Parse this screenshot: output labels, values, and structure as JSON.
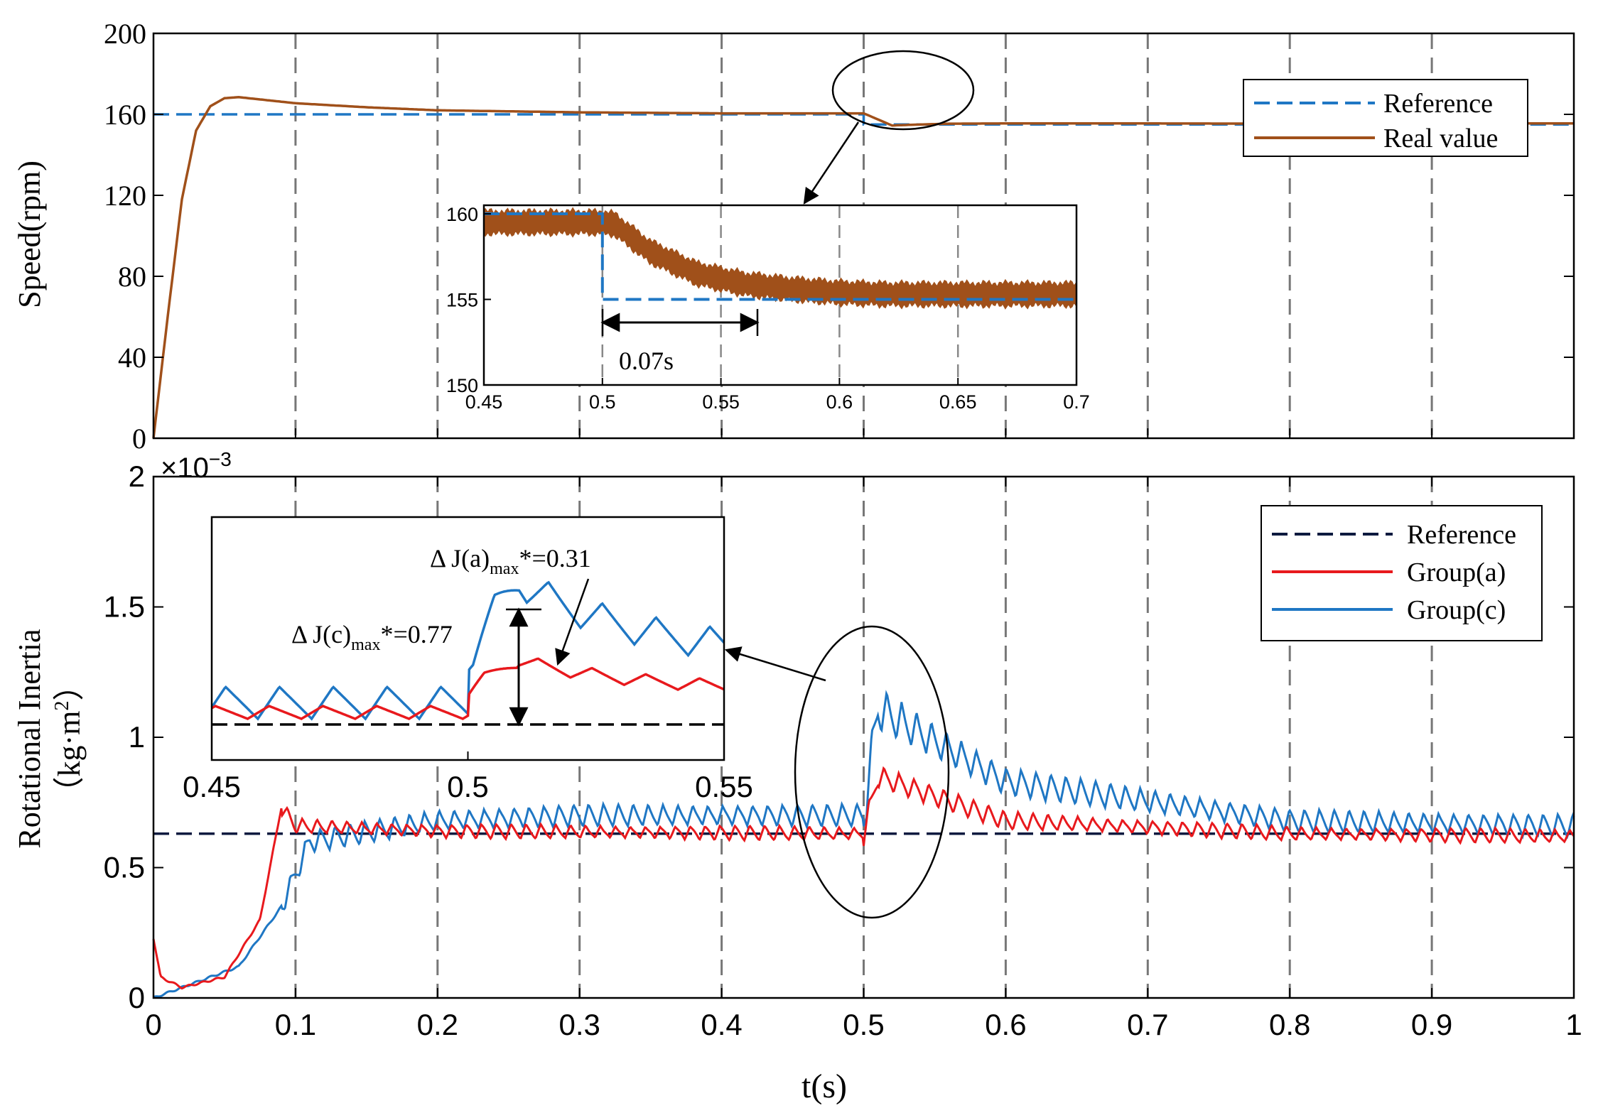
{
  "chart_data": [
    {
      "id": "speed",
      "type": "line",
      "title": "",
      "xlabel": "",
      "ylabel": "Speed(rpm)",
      "xlim": [
        0,
        1
      ],
      "ylim": [
        0,
        200
      ],
      "yticks": [
        0,
        40,
        80,
        120,
        160,
        200
      ],
      "ytick_labels": [
        "0",
        "40",
        "80",
        "120",
        "160",
        "200"
      ],
      "grid": "vertical dashed at every 0.1 s",
      "legend": {
        "placement": "top-right",
        "entries": [
          "Reference",
          "Real value"
        ]
      },
      "series": [
        {
          "name": "Reference",
          "style": "dashed",
          "color": "#1f77c4",
          "x": [
            0,
            0.5,
            0.5,
            1.0
          ],
          "y": [
            160,
            160,
            155,
            155
          ]
        },
        {
          "name": "Real value",
          "style": "solid",
          "color": "#a0501a",
          "x": [
            0,
            0.01,
            0.02,
            0.03,
            0.04,
            0.05,
            0.06,
            0.08,
            0.1,
            0.15,
            0.2,
            0.3,
            0.4,
            0.5,
            0.52,
            0.54,
            0.56,
            0.6,
            0.7,
            0.8,
            0.9,
            1.0
          ],
          "y": [
            0,
            60,
            118,
            152,
            164,
            168,
            168.5,
            167,
            165.5,
            163.5,
            162,
            161,
            160.5,
            160.5,
            154.5,
            155,
            155.4,
            155.5,
            155.5,
            155.4,
            155.5,
            155.5
          ]
        }
      ],
      "annotations": [
        {
          "text": "ellipse around step change at t=0.5 s with arrow to inset"
        }
      ]
    },
    {
      "id": "speed-inset",
      "type": "line",
      "xlim": [
        0.45,
        0.7
      ],
      "ylim": [
        150,
        160.5
      ],
      "xticks": [
        0.45,
        0.5,
        0.55,
        0.6,
        0.65,
        0.7
      ],
      "xtick_labels": [
        "0.45",
        "0.5",
        "0.55",
        "0.6",
        "0.65",
        "0.7"
      ],
      "yticks": [
        150,
        155,
        160
      ],
      "ytick_labels": [
        "150",
        "155",
        "160"
      ],
      "series": [
        {
          "name": "Reference",
          "style": "dashed",
          "color": "#1f77c4",
          "x": [
            0.45,
            0.5,
            0.5,
            0.7
          ],
          "y": [
            160,
            160,
            155,
            155
          ]
        },
        {
          "name": "Real value",
          "style": "band",
          "color": "#a0501a",
          "x": [
            0.45,
            0.5,
            0.505,
            0.52,
            0.54,
            0.56,
            0.58,
            0.6,
            0.62,
            0.65,
            0.7
          ],
          "y": [
            159.5,
            159.5,
            159.4,
            157.8,
            156.5,
            155.9,
            155.6,
            155.4,
            155.3,
            155.3,
            155.3
          ]
        }
      ],
      "annotations": [
        {
          "text": "0.07s",
          "x_start": 0.5,
          "x_end": 0.57,
          "y": 154
        }
      ]
    },
    {
      "id": "inertia",
      "type": "line",
      "xlabel": "t(s)",
      "ylabel": "Rotational Inertia",
      "ylabel_units": "（kg·m",
      "ylabel_units_sup": "2",
      "ylabel_units_close": "）",
      "exponent_label": "×10",
      "exponent_power": "−3",
      "xlim": [
        0,
        1
      ],
      "ylim": [
        0,
        0.002
      ],
      "xticks": [
        0,
        0.1,
        0.2,
        0.3,
        0.4,
        0.5,
        0.6,
        0.7,
        0.8,
        0.9,
        1
      ],
      "xtick_labels": [
        "0",
        "0.1",
        "0.2",
        "0.3",
        "0.4",
        "0.5",
        "0.6",
        "0.7",
        "0.8",
        "0.9",
        "1"
      ],
      "yticks": [
        0,
        0.0005,
        0.001,
        0.0015,
        0.002
      ],
      "ytick_labels": [
        "0",
        "0.5",
        "1",
        "1.5",
        "2"
      ],
      "legend": {
        "placement": "top-right",
        "entries": [
          "Reference",
          "Group(a)",
          "Group(c)"
        ]
      },
      "series": [
        {
          "name": "Reference",
          "style": "dashed",
          "color": "#0d1a3f",
          "constant": 0.00063
        },
        {
          "name": "Group(a)",
          "style": "solid",
          "color": "#e8191d",
          "envelope": [
            [
              0,
              0.00023
            ],
            [
              0.005,
              8e-05
            ],
            [
              0.02,
              4e-05
            ],
            [
              0.05,
              8e-05
            ],
            [
              0.075,
              0.0003
            ],
            [
              0.09,
              0.00073
            ],
            [
              0.1,
              0.00066
            ],
            [
              0.2,
              0.00064
            ],
            [
              0.5,
              0.00063
            ],
            [
              0.51,
              0.00085
            ],
            [
              0.6,
              0.00068
            ],
            [
              0.8,
              0.00063
            ],
            [
              1.0,
              0.00062
            ]
          ]
        },
        {
          "name": "Group(c)",
          "style": "solid",
          "color": "#1f77c4",
          "envelope": [
            [
              0,
              0.0
            ],
            [
              0.02,
              4e-05
            ],
            [
              0.06,
              0.00012
            ],
            [
              0.09,
              0.00035
            ],
            [
              0.11,
              0.0006
            ],
            [
              0.2,
              0.00068
            ],
            [
              0.3,
              0.0007
            ],
            [
              0.5,
              0.0007
            ],
            [
              0.51,
              0.00111
            ],
            [
              0.6,
              0.00083
            ],
            [
              0.8,
              0.00068
            ],
            [
              1.0,
              0.00066
            ]
          ]
        }
      ]
    },
    {
      "id": "inertia-inset",
      "type": "line",
      "xlim": [
        0.45,
        0.55
      ],
      "xticks": [
        0.45,
        0.5,
        0.55
      ],
      "xtick_labels": [
        "0.45",
        "0.5",
        "0.55"
      ],
      "annotations": [
        {
          "text_main": "Δ J(a)",
          "text_sub": "max",
          "text_tail": "*=0.31"
        },
        {
          "text_main": "Δ J(c)",
          "text_sub": "max",
          "text_tail": "*=0.77"
        }
      ]
    }
  ]
}
